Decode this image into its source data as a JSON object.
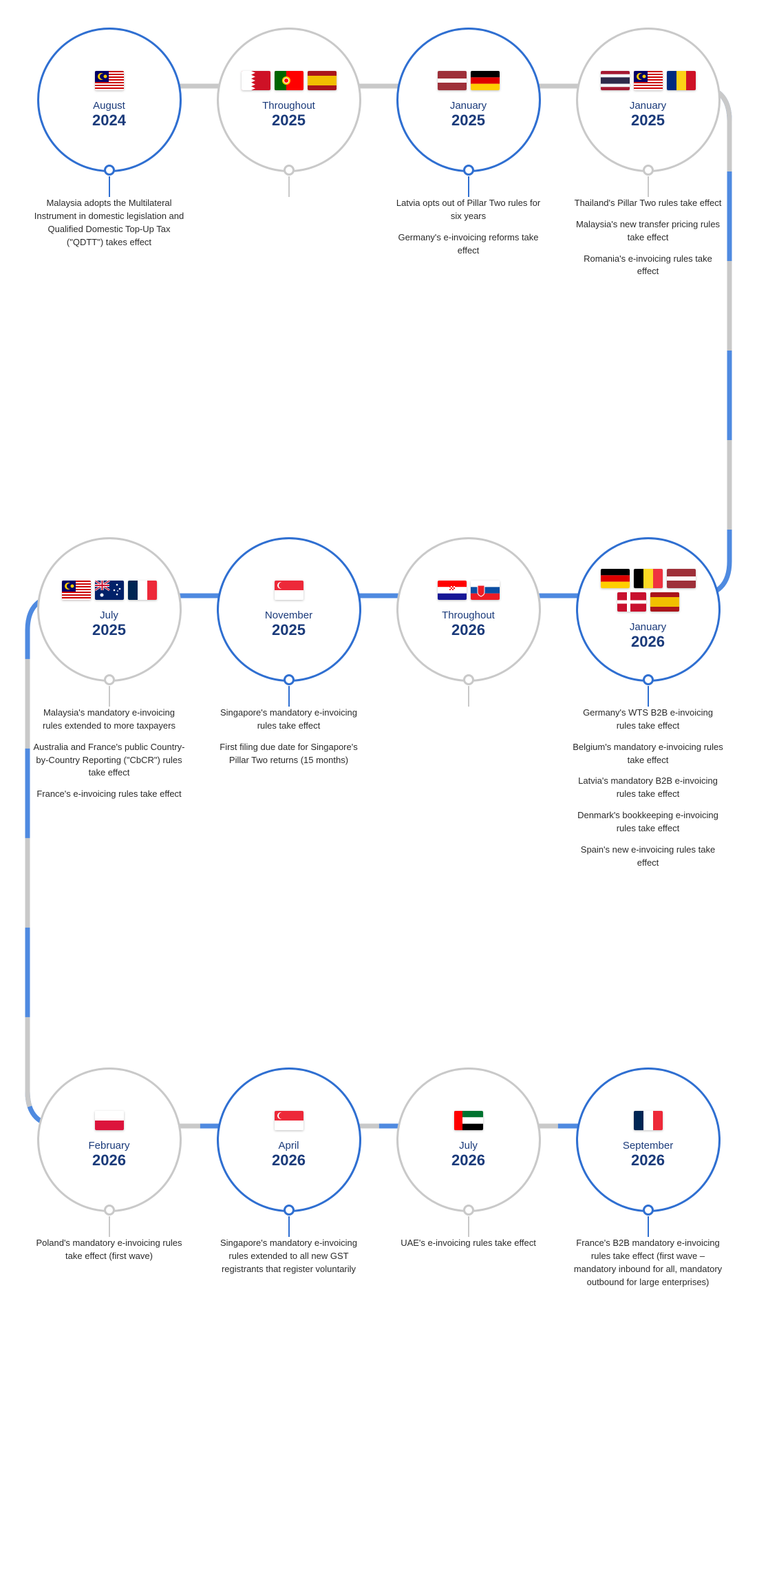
{
  "colors": {
    "blue": "#2f6fd1",
    "grey": "#c9c9c9",
    "text_dark": "#1a3a7a"
  },
  "layout": {
    "rows": 3,
    "cols": 4,
    "circle_diameter": 210,
    "border_width": 3,
    "row_offsets_y": [
      20,
      760,
      1530
    ]
  },
  "timeline_path": {
    "stroke_blue": "#4f8ae0",
    "stroke_grey": "#c9c9c9",
    "stroke_width": 7
  },
  "items": [
    {
      "month": "August",
      "year": "2024",
      "ring": "blue",
      "flags": [
        "MY"
      ],
      "paras": [
        "Malaysia adopts the Multilateral Instrument in domestic legislation and Qualified Domestic Top-Up Tax (\"QDTT\") takes effect"
      ]
    },
    {
      "month": "Throughout",
      "year": "2025",
      "ring": "grey",
      "flags": [
        "BH",
        "PT",
        "ES"
      ],
      "paras": []
    },
    {
      "month": "January",
      "year": "2025",
      "ring": "blue",
      "flags": [
        "LV",
        "DE"
      ],
      "paras": [
        "Latvia opts out of Pillar Two rules for six years",
        "Germany's e-invoicing reforms take effect"
      ]
    },
    {
      "month": "January",
      "year": "2025",
      "ring": "grey",
      "flags": [
        "TH",
        "MY",
        "RO"
      ],
      "paras": [
        "Thailand's Pillar Two rules take effect",
        "Malaysia's new transfer pricing rules take effect",
        "Romania's e-invoicing rules take effect"
      ]
    },
    {
      "month": "July",
      "year": "2025",
      "ring": "grey",
      "flags": [
        "MY",
        "AU",
        "FR"
      ],
      "paras": [
        "Malaysia's mandatory e-invoicing rules extended to more taxpayers",
        "Australia and France's public Country-by-Country Reporting (\"CbCR\") rules take effect",
        "France's e-invoicing rules take effect"
      ]
    },
    {
      "month": "November",
      "year": "2025",
      "ring": "blue",
      "flags": [
        "SG"
      ],
      "paras": [
        "Singapore's mandatory e-invoicing rules take effect",
        "First filing due date for Singapore's Pillar Two returns (15 months)"
      ]
    },
    {
      "month": "Throughout",
      "year": "2026",
      "ring": "grey",
      "flags": [
        "HR",
        "SK"
      ],
      "paras": []
    },
    {
      "month": "January",
      "year": "2026",
      "ring": "blue",
      "flags": [
        "DE",
        "BE",
        "LV",
        "DK",
        "ES"
      ],
      "paras": [
        "Germany's WTS B2B e-invoicing rules take effect",
        "Belgium's mandatory e-invoicing rules take effect",
        "Latvia's mandatory B2B e-invoicing rules take effect",
        "Denmark's bookkeeping e-invoicing rules take effect",
        "Spain's new e-invoicing rules take effect"
      ]
    },
    {
      "month": "February",
      "year": "2026",
      "ring": "grey",
      "flags": [
        "PL"
      ],
      "paras": [
        "Poland's mandatory e-invoicing rules take effect (first wave)"
      ]
    },
    {
      "month": "April",
      "year": "2026",
      "ring": "blue",
      "flags": [
        "SG"
      ],
      "paras": [
        "Singapore's mandatory e-invoicing rules extended to all new GST registrants that register voluntarily"
      ]
    },
    {
      "month": "July",
      "year": "2026",
      "ring": "grey",
      "flags": [
        "AE"
      ],
      "paras": [
        "UAE's e-invoicing rules take effect"
      ]
    },
    {
      "month": "September",
      "year": "2026",
      "ring": "blue",
      "flags": [
        "FR"
      ],
      "paras": [
        "France's B2B mandatory e-invoicing rules take effect (first wave – mandatory inbound for all, mandatory outbound for large enterprises)"
      ]
    }
  ],
  "flag_colors": {
    "MY": {
      "type": "my"
    },
    "BH": {
      "type": "bh"
    },
    "PT": {
      "type": "pt"
    },
    "ES": {
      "type": "es"
    },
    "LV": {
      "type": "lv"
    },
    "DE": {
      "type": "de"
    },
    "TH": {
      "type": "th"
    },
    "RO": {
      "type": "ro"
    },
    "AU": {
      "type": "au"
    },
    "FR": {
      "type": "fr"
    },
    "SG": {
      "type": "sg"
    },
    "HR": {
      "type": "hr"
    },
    "SK": {
      "type": "sk"
    },
    "BE": {
      "type": "be"
    },
    "DK": {
      "type": "dk"
    },
    "PL": {
      "type": "pl"
    },
    "AE": {
      "type": "ae"
    }
  }
}
